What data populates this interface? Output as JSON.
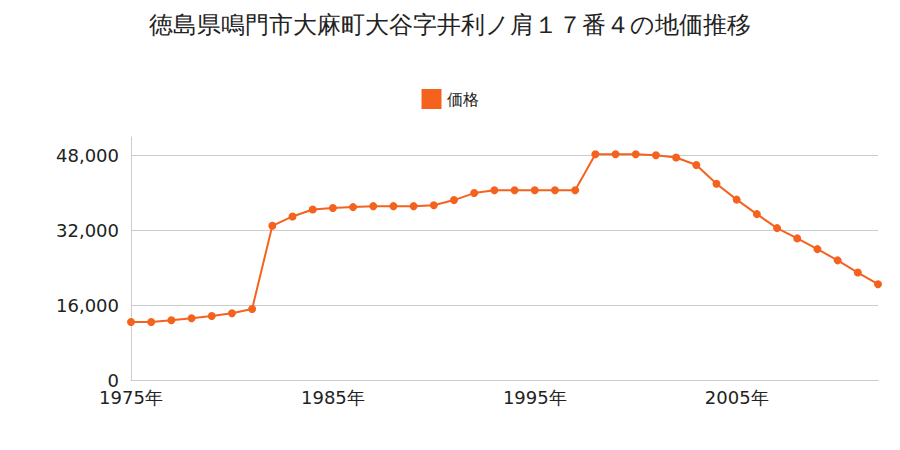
{
  "chart_data": {
    "type": "line",
    "title": "徳島県鳴門市大麻町大谷字井利ノ肩１７番４の地価推移",
    "x": [
      1975,
      1976,
      1977,
      1978,
      1979,
      1980,
      1981,
      1982,
      1983,
      1984,
      1985,
      1986,
      1987,
      1988,
      1989,
      1990,
      1991,
      1992,
      1993,
      1994,
      1995,
      1996,
      1997,
      1998,
      1999,
      2000,
      2001,
      2002,
      2003,
      2004,
      2005,
      2006,
      2007,
      2008,
      2009,
      2010,
      2011,
      2012
    ],
    "series": [
      {
        "name": "価格",
        "color": "#f5621e",
        "marker": "circle",
        "values": [
          12400,
          12400,
          12800,
          13200,
          13700,
          14300,
          15200,
          33000,
          35000,
          36500,
          36800,
          37000,
          37200,
          37200,
          37200,
          37400,
          38500,
          40000,
          40600,
          40600,
          40600,
          40600,
          40600,
          48300,
          48300,
          48300,
          48100,
          47600,
          46000,
          42000,
          38600,
          35500,
          32500,
          30300,
          28000,
          25600,
          23000,
          20500
        ]
      }
    ],
    "xlim": [
      1975,
      2012
    ],
    "xticks": [
      {
        "value": 1975,
        "label": "1975年"
      },
      {
        "value": 1985,
        "label": "1985年"
      },
      {
        "value": 1995,
        "label": "1995年"
      },
      {
        "value": 2005,
        "label": "2005年"
      }
    ],
    "ylim": [
      0,
      52000
    ],
    "yticks": [
      0,
      {
        "value": 16000,
        "label": "16,000"
      },
      {
        "value": 32000,
        "label": "32,000"
      },
      {
        "value": 48000,
        "label": "48,000"
      }
    ],
    "grid": true,
    "legend": "top"
  }
}
